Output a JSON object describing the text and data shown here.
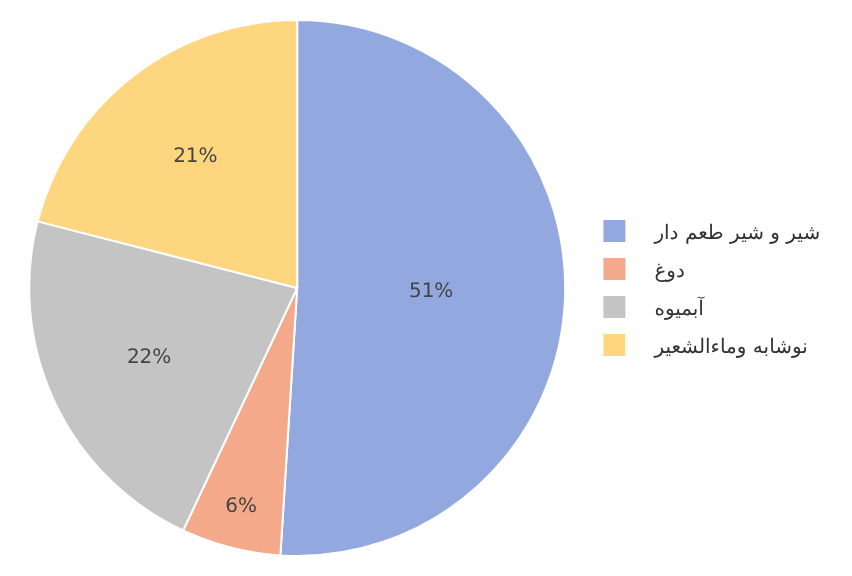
{
  "chart_data": {
    "type": "pie",
    "categories": [
      "شیر و شیر طعم دار",
      "دوغ",
      "آبمیوه",
      "نوشابه وماءالشعیر"
    ],
    "values": [
      51,
      6,
      22,
      21
    ],
    "value_labels": [
      "51%",
      "6%",
      "22%",
      "21%"
    ],
    "colors": [
      "#92a8de",
      "#f4aa8a",
      "#c4c4c4",
      "#ffd680"
    ],
    "legend": "right"
  }
}
